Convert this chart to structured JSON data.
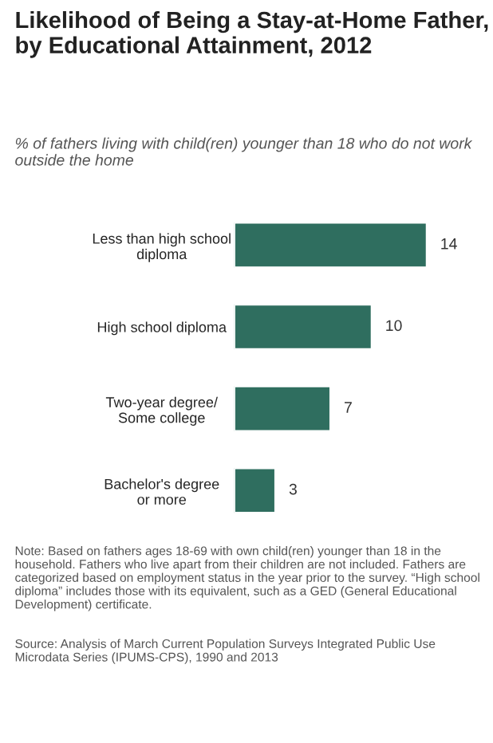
{
  "chart_data": {
    "type": "bar",
    "orientation": "horizontal",
    "title": "Likelihood of Being a Stay-at-Home Father, by Educational Attainment, 2012",
    "subtitle": "% of fathers living with child(ren) younger than 18 who do not work outside the home",
    "categories": [
      "Less than high school\ndiploma",
      "High school diploma",
      "Two-year degree/\nSome college",
      "Bachelor's degree\nor more"
    ],
    "values": [
      14,
      10,
      7,
      3
    ],
    "color": "#2f6e5f",
    "data_labels": true,
    "grid": false,
    "legend": false,
    "annotations": [
      "Note: Based on fathers ages 18-69 with own child(ren) younger than 18 in the household. Fathers who live apart from their children are not included. Fathers are categorized based on employment status in the year prior to the survey. “High school diploma” includes those with its equivalent, such as a GED (General Educational Development) certificate.",
      "Source: Analysis of March Current Population Surveys Integrated Public Use Microdata Series (IPUMS-CPS), 1990 and 2013"
    ]
  }
}
